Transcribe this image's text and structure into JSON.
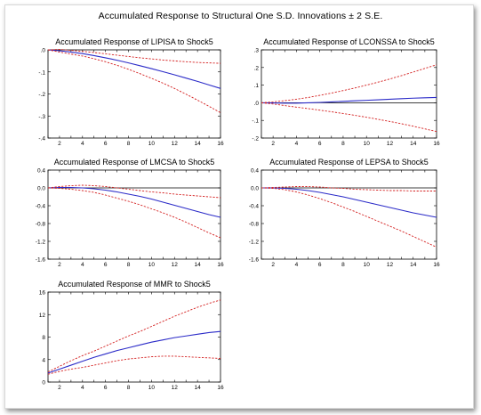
{
  "title": "Accumulated Response to Structural One S.D. Innovations ± 2 S.E.",
  "colors": {
    "response": "#2b2bc8",
    "band": "#d42020",
    "zero": "#000000",
    "axis": "#000000"
  },
  "chart_data": [
    {
      "type": "line",
      "title": "Accumulated Response of LIPISA to Shock5",
      "x": [
        1,
        2,
        3,
        4,
        5,
        6,
        7,
        8,
        9,
        10,
        11,
        12,
        13,
        14,
        15,
        16
      ],
      "xticks": [
        2,
        4,
        6,
        8,
        10,
        12,
        14,
        16
      ],
      "xticklabels": [
        "2",
        "4",
        "6",
        "8",
        "10",
        "12",
        "14",
        "16"
      ],
      "xlim": [
        1,
        16
      ],
      "ylim": [
        -0.4,
        0.0
      ],
      "yticks": [
        0.0,
        -0.1,
        -0.2,
        -0.3,
        -0.4
      ],
      "yticklabels": [
        ".0",
        "-.1",
        "-.2",
        "-.3",
        "-.4"
      ],
      "series": [
        {
          "role": "response",
          "values": [
            0,
            -0.004,
            -0.01,
            -0.017,
            -0.026,
            -0.036,
            -0.047,
            -0.059,
            -0.072,
            -0.085,
            -0.099,
            -0.113,
            -0.128,
            -0.143,
            -0.159,
            -0.175
          ]
        },
        {
          "role": "upper",
          "values": [
            0,
            0.002,
            -0.002,
            -0.007,
            -0.012,
            -0.018,
            -0.024,
            -0.03,
            -0.036,
            -0.041,
            -0.046,
            -0.05,
            -0.054,
            -0.057,
            -0.059,
            -0.061
          ]
        },
        {
          "role": "lower",
          "values": [
            0,
            -0.01,
            -0.019,
            -0.028,
            -0.04,
            -0.054,
            -0.07,
            -0.088,
            -0.108,
            -0.129,
            -0.151,
            -0.175,
            -0.201,
            -0.228,
            -0.256,
            -0.285
          ]
        }
      ]
    },
    {
      "type": "line",
      "title": "Accumulated Response of LCONSSA to Shock5",
      "x": [
        1,
        2,
        3,
        4,
        5,
        6,
        7,
        8,
        9,
        10,
        11,
        12,
        13,
        14,
        15,
        16
      ],
      "xticks": [
        2,
        4,
        6,
        8,
        10,
        12,
        14,
        16
      ],
      "xticklabels": [
        "2",
        "4",
        "6",
        "8",
        "10",
        "12",
        "14",
        "16"
      ],
      "xlim": [
        1,
        16
      ],
      "ylim": [
        -0.2,
        0.3
      ],
      "yticks": [
        0.3,
        0.2,
        0.1,
        0.0,
        -0.1,
        -0.2
      ],
      "yticklabels": [
        ".3",
        ".2",
        ".1",
        ".0",
        "-.1",
        "-.2"
      ],
      "series": [
        {
          "role": "response",
          "values": [
            0,
            -0.001,
            -0.002,
            -0.002,
            0.0,
            0.002,
            0.005,
            0.008,
            0.011,
            0.014,
            0.017,
            0.02,
            0.023,
            0.026,
            0.028,
            0.03
          ]
        },
        {
          "role": "upper",
          "values": [
            0,
            0.005,
            0.012,
            0.02,
            0.03,
            0.042,
            0.055,
            0.069,
            0.084,
            0.1,
            0.117,
            0.135,
            0.154,
            0.174,
            0.195,
            0.215
          ]
        },
        {
          "role": "lower",
          "values": [
            0,
            -0.007,
            -0.016,
            -0.025,
            -0.033,
            -0.042,
            -0.051,
            -0.061,
            -0.071,
            -0.082,
            -0.094,
            -0.106,
            -0.119,
            -0.133,
            -0.148,
            -0.163
          ]
        }
      ]
    },
    {
      "type": "line",
      "title": "Accumulated Response of LMCSA to Shock5",
      "x": [
        1,
        2,
        3,
        4,
        5,
        6,
        7,
        8,
        9,
        10,
        11,
        12,
        13,
        14,
        15,
        16
      ],
      "xticks": [
        2,
        4,
        6,
        8,
        10,
        12,
        14,
        16
      ],
      "xticklabels": [
        "2",
        "4",
        "6",
        "8",
        "10",
        "12",
        "14",
        "16"
      ],
      "xlim": [
        1,
        16
      ],
      "ylim": [
        -1.6,
        0.4
      ],
      "yticks": [
        0.4,
        0.0,
        -0.4,
        -0.8,
        -1.2,
        -1.6
      ],
      "yticklabels": [
        "0.4",
        "0.0",
        "-0.4",
        "-0.8",
        "-1.2",
        "-1.6"
      ],
      "series": [
        {
          "role": "response",
          "values": [
            0,
            0.01,
            0.01,
            0.0,
            -0.02,
            -0.05,
            -0.09,
            -0.14,
            -0.19,
            -0.25,
            -0.32,
            -0.39,
            -0.46,
            -0.53,
            -0.6,
            -0.66
          ]
        },
        {
          "role": "upper",
          "values": [
            0,
            0.03,
            0.05,
            0.06,
            0.05,
            0.03,
            0.0,
            -0.03,
            -0.06,
            -0.09,
            -0.11,
            -0.14,
            -0.16,
            -0.18,
            -0.2,
            -0.22
          ]
        },
        {
          "role": "lower",
          "values": [
            0,
            -0.01,
            -0.03,
            -0.06,
            -0.1,
            -0.16,
            -0.23,
            -0.3,
            -0.38,
            -0.47,
            -0.56,
            -0.66,
            -0.77,
            -0.89,
            -1.01,
            -1.12
          ]
        }
      ]
    },
    {
      "type": "line",
      "title": "Accumulated Response of LEPSA to Shock5",
      "x": [
        1,
        2,
        3,
        4,
        5,
        6,
        7,
        8,
        9,
        10,
        11,
        12,
        13,
        14,
        15,
        16
      ],
      "xticks": [
        2,
        4,
        6,
        8,
        10,
        12,
        14,
        16
      ],
      "xticklabels": [
        "2",
        "4",
        "6",
        "8",
        "10",
        "12",
        "14",
        "16"
      ],
      "xlim": [
        1,
        16
      ],
      "ylim": [
        -1.6,
        0.4
      ],
      "yticks": [
        0.4,
        0.0,
        -0.4,
        -0.8,
        -1.2,
        -1.6
      ],
      "yticklabels": [
        "0.4",
        "0.0",
        "-0.4",
        "-0.8",
        "-1.2",
        "-1.6"
      ],
      "series": [
        {
          "role": "response",
          "values": [
            0,
            0.0,
            -0.01,
            -0.03,
            -0.06,
            -0.1,
            -0.15,
            -0.2,
            -0.26,
            -0.32,
            -0.38,
            -0.44,
            -0.5,
            -0.56,
            -0.61,
            -0.66
          ]
        },
        {
          "role": "upper",
          "values": [
            0,
            0.01,
            0.02,
            0.03,
            0.03,
            0.02,
            0.0,
            -0.01,
            -0.03,
            -0.04,
            -0.05,
            -0.06,
            -0.06,
            -0.07,
            -0.07,
            -0.07
          ]
        },
        {
          "role": "lower",
          "values": [
            0,
            -0.01,
            -0.04,
            -0.09,
            -0.16,
            -0.24,
            -0.33,
            -0.43,
            -0.53,
            -0.64,
            -0.75,
            -0.86,
            -0.97,
            -1.09,
            -1.21,
            -1.33
          ]
        }
      ]
    },
    {
      "type": "line",
      "title": "Accumulated Response of MMR to Shock5",
      "x": [
        1,
        2,
        3,
        4,
        5,
        6,
        7,
        8,
        9,
        10,
        11,
        12,
        13,
        14,
        15,
        16
      ],
      "xticks": [
        2,
        4,
        6,
        8,
        10,
        12,
        14,
        16
      ],
      "xticklabels": [
        "2",
        "4",
        "6",
        "8",
        "10",
        "12",
        "14",
        "16"
      ],
      "xlim": [
        1,
        16
      ],
      "ylim": [
        0,
        16
      ],
      "yticks": [
        16,
        12,
        8,
        4,
        0
      ],
      "yticklabels": [
        "16",
        "12",
        "8",
        "4",
        "0"
      ],
      "series": [
        {
          "role": "response",
          "values": [
            1.6,
            2.3,
            3.0,
            3.7,
            4.4,
            5.0,
            5.6,
            6.1,
            6.6,
            7.1,
            7.5,
            7.9,
            8.2,
            8.5,
            8.8,
            9.0
          ]
        },
        {
          "role": "upper",
          "values": [
            1.8,
            2.8,
            3.8,
            4.7,
            5.5,
            6.4,
            7.3,
            8.2,
            9.0,
            9.9,
            10.8,
            11.7,
            12.5,
            13.3,
            14.0,
            14.6
          ]
        },
        {
          "role": "lower",
          "values": [
            1.4,
            1.9,
            2.3,
            2.6,
            3.0,
            3.4,
            3.8,
            4.1,
            4.3,
            4.5,
            4.6,
            4.6,
            4.5,
            4.4,
            4.3,
            4.2
          ]
        }
      ]
    }
  ]
}
